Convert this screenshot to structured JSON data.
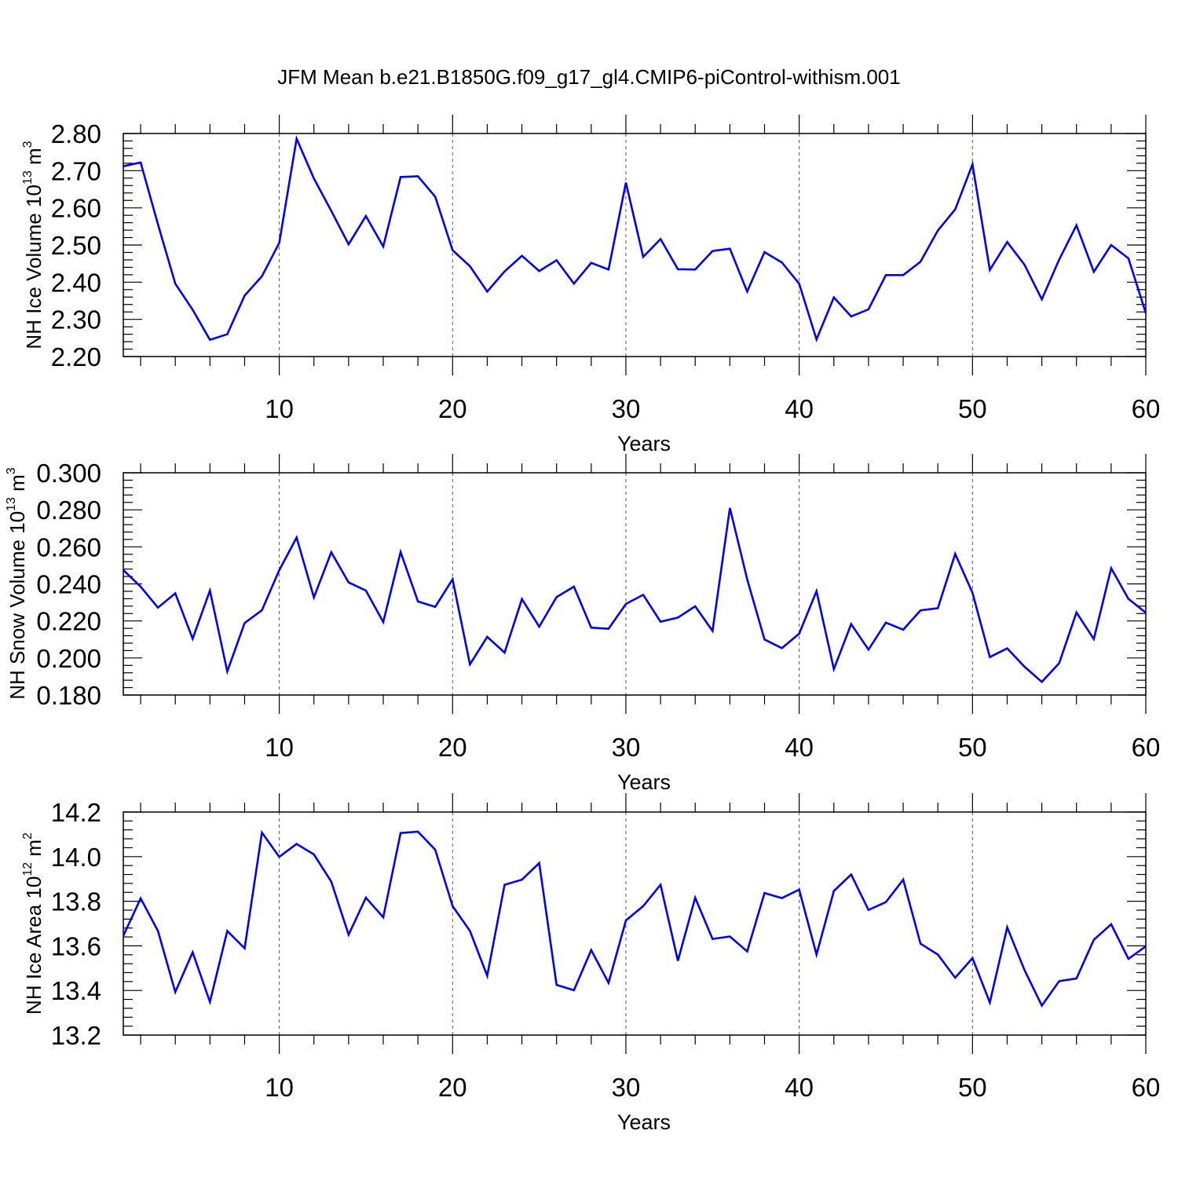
{
  "title": "JFM Mean b.e21.B1850G.f09_g17_gl4.CMIP6-piControl-withism.001",
  "colors": {
    "line": "#0000ff",
    "axis": "#000000",
    "grid": "#555555"
  },
  "chart_data": [
    {
      "type": "line",
      "xlabel": "Years",
      "ylabel_main": "NH Ice Volume 10",
      "ylabel_exp": "13",
      "ylabel_unit": " m",
      "ylabel_unit_exp": "3",
      "xlim": [
        1,
        60
      ],
      "ylim": [
        2.2,
        2.8
      ],
      "xticks": [
        10,
        20,
        30,
        40,
        50,
        60
      ],
      "xtick_labels": [
        "10",
        "20",
        "30",
        "40",
        "50",
        "60"
      ],
      "yticks": [
        2.2,
        2.3,
        2.4,
        2.5,
        2.6,
        2.7,
        2.8
      ],
      "ytick_labels": [
        "2.20",
        "2.30",
        "2.40",
        "2.50",
        "2.60",
        "2.70",
        "2.80"
      ],
      "grid": "dashed vertical at major x ticks",
      "x": [
        1,
        2,
        3,
        4,
        5,
        6,
        7,
        8,
        9,
        10,
        11,
        12,
        13,
        14,
        15,
        16,
        17,
        18,
        19,
        20,
        21,
        22,
        23,
        24,
        25,
        26,
        27,
        28,
        29,
        30,
        31,
        32,
        33,
        34,
        35,
        36,
        37,
        38,
        39,
        40,
        41,
        42,
        43,
        44,
        45,
        46,
        47,
        48,
        49,
        50,
        51,
        52,
        53,
        54,
        55,
        56,
        57,
        58,
        59,
        60
      ],
      "values": [
        2.712,
        2.722,
        2.556,
        2.396,
        2.326,
        2.245,
        2.26,
        2.364,
        2.416,
        2.506,
        2.786,
        2.679,
        2.592,
        2.502,
        2.578,
        2.496,
        2.683,
        2.685,
        2.63,
        2.486,
        2.443,
        2.375,
        2.429,
        2.471,
        2.43,
        2.459,
        2.396,
        2.452,
        2.434,
        2.668,
        2.468,
        2.516,
        2.435,
        2.434,
        2.484,
        2.49,
        2.375,
        2.481,
        2.453,
        2.396,
        2.246,
        2.359,
        2.308,
        2.327,
        2.419,
        2.419,
        2.455,
        2.539,
        2.596,
        2.717,
        2.433,
        2.508,
        2.447,
        2.354,
        2.461,
        2.553,
        2.428,
        2.5,
        2.464,
        2.317
      ]
    },
    {
      "type": "line",
      "xlabel": "Years",
      "ylabel_main": "NH Snow Volume 10",
      "ylabel_exp": "13",
      "ylabel_unit": " m",
      "ylabel_unit_exp": "3",
      "xlim": [
        1,
        60
      ],
      "ylim": [
        0.18,
        0.3
      ],
      "xticks": [
        10,
        20,
        30,
        40,
        50,
        60
      ],
      "xtick_labels": [
        "10",
        "20",
        "30",
        "40",
        "50",
        "60"
      ],
      "yticks": [
        0.18,
        0.2,
        0.22,
        0.24,
        0.26,
        0.28,
        0.3
      ],
      "ytick_labels": [
        "0.180",
        "0.200",
        "0.220",
        "0.240",
        "0.260",
        "0.280",
        "0.300"
      ],
      "grid": "dashed vertical at major x ticks",
      "x": [
        1,
        2,
        3,
        4,
        5,
        6,
        7,
        8,
        9,
        10,
        11,
        12,
        13,
        14,
        15,
        16,
        17,
        18,
        19,
        20,
        21,
        22,
        23,
        24,
        25,
        26,
        27,
        28,
        29,
        30,
        31,
        32,
        33,
        34,
        35,
        36,
        37,
        38,
        39,
        40,
        41,
        42,
        43,
        44,
        45,
        46,
        47,
        48,
        49,
        50,
        51,
        52,
        53,
        54,
        55,
        56,
        57,
        58,
        59,
        60
      ],
      "values": [
        0.2475,
        0.2385,
        0.2272,
        0.2349,
        0.2104,
        0.2364,
        0.1927,
        0.2189,
        0.2258,
        0.2474,
        0.265,
        0.2327,
        0.2571,
        0.2408,
        0.2364,
        0.2194,
        0.2572,
        0.2305,
        0.2276,
        0.2425,
        0.1966,
        0.2114,
        0.2029,
        0.2318,
        0.2169,
        0.2329,
        0.2385,
        0.2164,
        0.2158,
        0.2292,
        0.2341,
        0.2196,
        0.2218,
        0.2279,
        0.2146,
        0.281,
        0.2425,
        0.21,
        0.2053,
        0.2131,
        0.2361,
        0.194,
        0.2183,
        0.2045,
        0.2191,
        0.2153,
        0.2257,
        0.2269,
        0.2562,
        0.2352,
        0.2005,
        0.2052,
        0.1953,
        0.1871,
        0.1972,
        0.2246,
        0.2102,
        0.2485,
        0.2319,
        0.2245
      ]
    },
    {
      "type": "line",
      "xlabel": "Years",
      "ylabel_main": "NH Ice Area 10",
      "ylabel_exp": "12",
      "ylabel_unit": " m",
      "ylabel_unit_exp": "2",
      "xlim": [
        1,
        60
      ],
      "ylim": [
        13.2,
        14.2
      ],
      "xticks": [
        10,
        20,
        30,
        40,
        50,
        60
      ],
      "xtick_labels": [
        "10",
        "20",
        "30",
        "40",
        "50",
        "60"
      ],
      "yticks": [
        13.2,
        13.4,
        13.6,
        13.8,
        14.0,
        14.2
      ],
      "ytick_labels": [
        "13.2",
        "13.4",
        "13.6",
        "13.8",
        "14.0",
        "14.2"
      ],
      "grid": "dashed vertical at major x ticks",
      "x": [
        1,
        2,
        3,
        4,
        5,
        6,
        7,
        8,
        9,
        10,
        11,
        12,
        13,
        14,
        15,
        16,
        17,
        18,
        19,
        20,
        21,
        22,
        23,
        24,
        25,
        26,
        27,
        28,
        29,
        30,
        31,
        32,
        33,
        34,
        35,
        36,
        37,
        38,
        39,
        40,
        41,
        42,
        43,
        44,
        45,
        46,
        47,
        48,
        49,
        50,
        51,
        52,
        53,
        54,
        55,
        56,
        57,
        58,
        59,
        60
      ],
      "values": [
        13.645,
        13.813,
        13.667,
        13.393,
        13.571,
        13.349,
        13.667,
        13.589,
        14.108,
        13.999,
        14.057,
        14.01,
        13.888,
        13.65,
        13.816,
        13.728,
        14.106,
        14.112,
        14.031,
        13.778,
        13.667,
        13.466,
        13.874,
        13.897,
        13.971,
        13.425,
        13.401,
        13.581,
        13.434,
        13.714,
        13.778,
        13.874,
        13.533,
        13.816,
        13.631,
        13.642,
        13.575,
        13.837,
        13.814,
        13.852,
        13.561,
        13.846,
        13.92,
        13.761,
        13.796,
        13.897,
        13.61,
        13.561,
        13.457,
        13.545,
        13.346,
        13.683,
        13.492,
        13.332,
        13.442,
        13.454,
        13.627,
        13.697,
        13.542,
        13.598
      ]
    }
  ]
}
